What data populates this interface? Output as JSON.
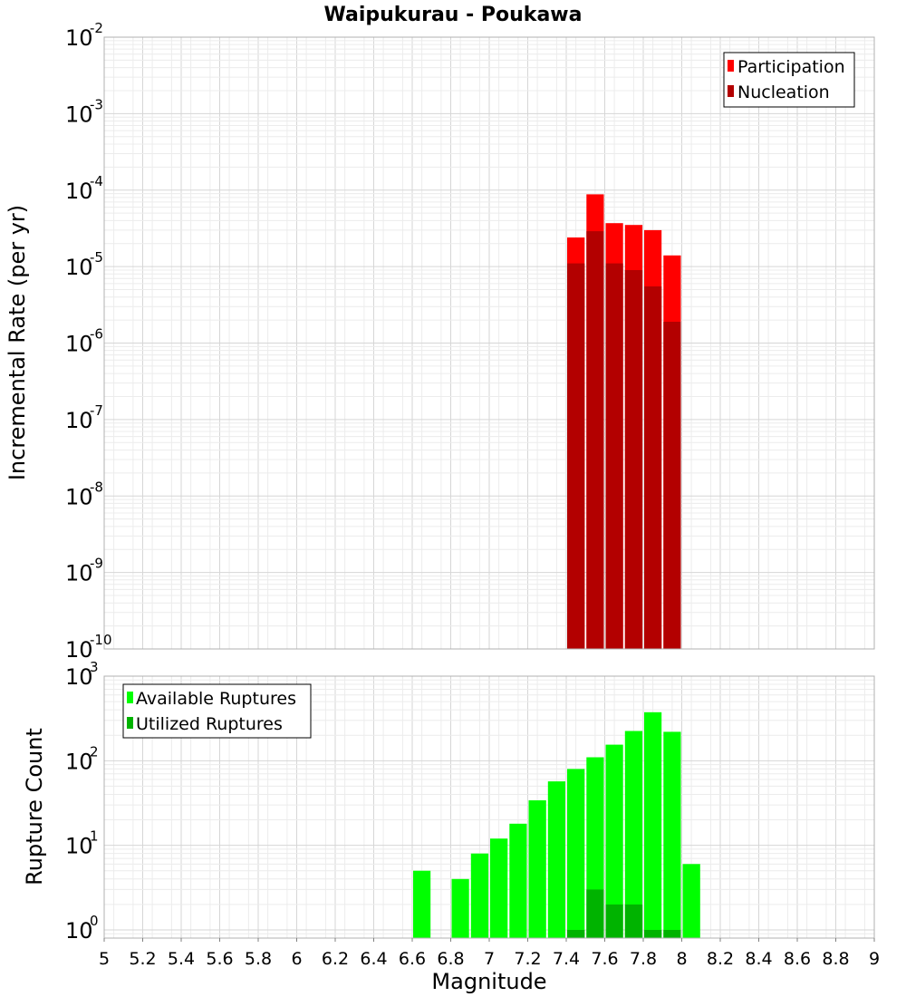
{
  "chart_data": [
    {
      "type": "bar",
      "panel": "top",
      "title": "Waipukurau - Poukawa",
      "xlabel": "",
      "ylabel": "Incremental Rate (per yr)",
      "yscale": "log",
      "xlim": [
        5,
        9
      ],
      "ylim_exp": [
        -10,
        -2
      ],
      "y_tick_exponents": [
        -10,
        -9,
        -8,
        -7,
        -6,
        -5,
        -4,
        -3,
        -2
      ],
      "bin_width": 0.1,
      "grid": true,
      "legend_position": "top-right",
      "x": [
        7.45,
        7.55,
        7.65,
        7.75,
        7.85,
        7.95
      ],
      "series": [
        {
          "name": "Participation",
          "color": "#ff0000",
          "values": [
            2.4e-05,
            8.8e-05,
            3.7e-05,
            3.5e-05,
            3e-05,
            1.4e-05
          ]
        },
        {
          "name": "Nucleation",
          "color": "#b30000",
          "values": [
            1.1e-05,
            2.9e-05,
            1.1e-05,
            9e-06,
            5.5e-06,
            1.9e-06
          ]
        }
      ]
    },
    {
      "type": "bar",
      "panel": "bottom",
      "title": "",
      "xlabel": "Magnitude",
      "ylabel": "Rupture Count",
      "yscale": "log",
      "xlim": [
        5,
        9
      ],
      "ylim": [
        0.8,
        1000
      ],
      "y_tick_exponents": [
        0,
        1,
        2,
        3
      ],
      "x_ticks": [
        "5",
        "5.2",
        "5.4",
        "5.6",
        "5.8",
        "6",
        "6.2",
        "6.4",
        "6.6",
        "6.8",
        "7",
        "7.2",
        "7.4",
        "7.6",
        "7.8",
        "8",
        "8.2",
        "8.4",
        "8.6",
        "8.8",
        "9"
      ],
      "bin_width": 0.1,
      "grid": true,
      "legend_position": "top-left",
      "series": [
        {
          "name": "Available Ruptures",
          "color": "#00ff00",
          "x": [
            6.65,
            6.85,
            6.95,
            7.05,
            7.15,
            7.25,
            7.35,
            7.45,
            7.55,
            7.65,
            7.75,
            7.85,
            7.95,
            8.05
          ],
          "values": [
            5,
            4,
            8,
            12,
            18,
            34,
            57,
            80,
            110,
            155,
            225,
            375,
            220,
            6
          ]
        },
        {
          "name": "Utilized Ruptures",
          "color": "#00b300",
          "x": [
            7.45,
            7.55,
            7.65,
            7.75,
            7.85,
            7.95
          ],
          "values": [
            1,
            3,
            2,
            2,
            1,
            1
          ]
        }
      ]
    }
  ]
}
